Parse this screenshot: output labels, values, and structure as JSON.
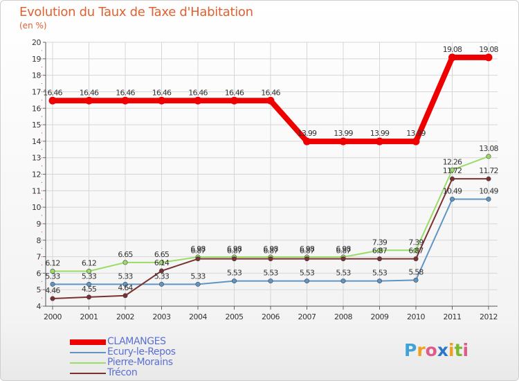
{
  "title": "Evolution du Taux de Taxe d'Habitation",
  "subtitle": "(en %)",
  "logo": {
    "letters": [
      "P",
      "r",
      "o",
      "x",
      "i",
      "t",
      "i"
    ],
    "colors": [
      "#3fa3d8",
      "#f0a020",
      "#e05a8a",
      "#2e77c8",
      "#f0a020",
      "#7bb832",
      "#e05a8a"
    ]
  },
  "chart_data": {
    "type": "line",
    "x": [
      "2000",
      "2001",
      "2002",
      "2003",
      "2004",
      "2005",
      "2006",
      "2007",
      "2008",
      "2009",
      "2010",
      "2011",
      "2012"
    ],
    "ylim": [
      4,
      20
    ],
    "yticks": [
      "4",
      "5",
      "6",
      "7",
      "8",
      "9",
      "10",
      "11",
      "12",
      "13",
      "14",
      "15",
      "16",
      "17",
      "18",
      "19",
      "20"
    ],
    "grid": true,
    "legend_position": "bottom-left",
    "series": [
      {
        "name": "CLAMANGES",
        "color": "#ee0000",
        "width": 8,
        "values": [
          16.46,
          16.46,
          16.46,
          16.46,
          16.46,
          16.46,
          16.46,
          13.99,
          13.99,
          13.99,
          13.99,
          19.08,
          19.08
        ],
        "labels": [
          "16.46",
          "16.46",
          "16.46",
          "16.46",
          "16.46",
          "16.46",
          "16.46",
          "13.99",
          "13.99",
          "13.99",
          "13.99",
          "19.08",
          "19.08"
        ]
      },
      {
        "name": "Ecury-le-Repos",
        "color": "#5f95c4",
        "width": 2,
        "values": [
          5.33,
          5.33,
          5.33,
          5.33,
          5.33,
          5.53,
          5.53,
          5.53,
          5.53,
          5.53,
          5.58,
          10.49,
          10.49
        ],
        "labels": [
          "5.33",
          "5.33",
          "5.33",
          "5.33",
          "5.33",
          "5.53",
          "5.53",
          "5.53",
          "5.53",
          "5.53",
          "5.58",
          "10.49",
          "10.49"
        ]
      },
      {
        "name": "Pierre-Morains",
        "color": "#99dd66",
        "width": 2,
        "values": [
          6.12,
          6.12,
          6.65,
          6.65,
          6.98,
          6.98,
          6.98,
          6.98,
          6.98,
          7.39,
          7.39,
          12.26,
          13.08
        ],
        "labels": [
          "6.12",
          "6.12",
          "6.65",
          "6.65",
          "6.98",
          "6.98",
          "6.98",
          "6.98",
          "6.98",
          "7.39",
          "7.39",
          "12.26",
          "13.08"
        ]
      },
      {
        "name": "Trécon",
        "color": "#7a3030",
        "width": 2,
        "values": [
          4.46,
          4.55,
          4.64,
          6.14,
          6.87,
          6.87,
          6.87,
          6.87,
          6.87,
          6.87,
          6.87,
          11.72,
          11.72
        ],
        "labels": [
          "4.46",
          "4.55",
          "4.64",
          "6.14",
          "6.87",
          "6.87",
          "6.87",
          "6.87",
          "6.87",
          "6.87",
          "6.87",
          "11.72",
          "11.72"
        ]
      }
    ]
  }
}
